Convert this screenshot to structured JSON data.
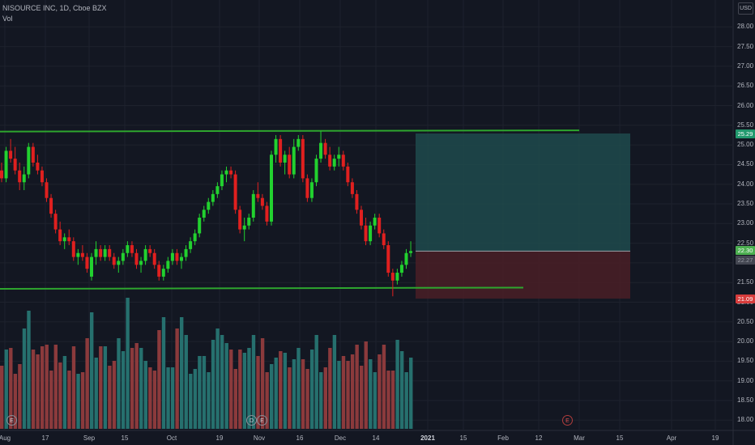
{
  "header": {
    "symbol_line": "NISOURCE INC, 1D, Cboe BZX",
    "volume_label": "Vol"
  },
  "currency_button": "USD",
  "colors": {
    "background": "#131722",
    "up": "#22d12f",
    "down": "#e0201f",
    "volume_up": "#26706e",
    "volume_down": "#8b3a3c",
    "channel": "#2ea62e",
    "target_zone": "#1e4a4c",
    "stop_zone": "#4a1f26",
    "grid": "#1e222d"
  },
  "price_axis": {
    "labels": [
      "28.00",
      "27.50",
      "27.00",
      "26.50",
      "26.00",
      "25.50",
      "25.00",
      "24.50",
      "24.00",
      "23.50",
      "23.00",
      "22.50",
      "22.00",
      "21.50",
      "21.00",
      "20.50",
      "20.00",
      "19.50",
      "19.00",
      "18.50",
      "18.00"
    ]
  },
  "price_tags": {
    "target": "25.29",
    "current": "22.30",
    "hidden": "22.27",
    "stop": "21.09"
  },
  "time_axis": {
    "labels": [
      "Aug",
      "17",
      "Sep",
      "15",
      "Oct",
      "19",
      "Nov",
      "16",
      "Dec",
      "14",
      "2021",
      "15",
      "Feb",
      "12",
      "Mar",
      "15",
      "Apr",
      "19"
    ]
  },
  "events": [
    {
      "type": "earnings",
      "label": "E"
    },
    {
      "type": "dividend",
      "label": "D"
    },
    {
      "type": "earnings",
      "label": "E"
    },
    {
      "type": "earnings-upcoming",
      "label": "E"
    }
  ],
  "chart_data": {
    "type": "candlestick",
    "symbol": "NISOURCE INC",
    "interval": "1D",
    "exchange": "Cboe BZX",
    "currency": "USD",
    "ylim": [
      17.9,
      28.3
    ],
    "x_range": [
      "Aug 2020",
      "Apr 2021"
    ],
    "candles": [
      [
        24.35,
        24.55,
        24.05,
        24.15
      ],
      [
        24.15,
        24.95,
        24.05,
        24.85
      ],
      [
        24.85,
        25.15,
        24.55,
        24.65
      ],
      [
        24.65,
        24.95,
        24.25,
        24.35
      ],
      [
        24.35,
        24.55,
        23.85,
        24.05
      ],
      [
        24.05,
        24.45,
        23.85,
        24.25
      ],
      [
        24.25,
        25.05,
        24.15,
        24.95
      ],
      [
        24.95,
        25.05,
        24.45,
        24.55
      ],
      [
        24.55,
        24.75,
        24.25,
        24.35
      ],
      [
        24.35,
        24.45,
        23.95,
        24.05
      ],
      [
        24.05,
        24.15,
        23.55,
        23.65
      ],
      [
        23.65,
        23.75,
        23.15,
        23.25
      ],
      [
        23.25,
        23.35,
        22.75,
        22.85
      ],
      [
        22.85,
        23.05,
        22.45,
        22.55
      ],
      [
        22.55,
        22.75,
        22.35,
        22.65
      ],
      [
        22.65,
        22.85,
        22.45,
        22.55
      ],
      [
        22.55,
        22.65,
        22.05,
        22.15
      ],
      [
        22.15,
        22.35,
        21.95,
        22.25
      ],
      [
        22.25,
        22.45,
        22.05,
        22.15
      ],
      [
        22.15,
        22.25,
        21.75,
        21.85
      ],
      [
        21.65,
        22.25,
        21.55,
        22.15
      ],
      [
        22.15,
        22.55,
        21.95,
        22.35
      ],
      [
        22.35,
        22.45,
        22.05,
        22.15
      ],
      [
        22.15,
        22.45,
        22.05,
        22.35
      ],
      [
        22.35,
        22.45,
        22.05,
        22.15
      ],
      [
        22.15,
        22.25,
        21.85,
        21.95
      ],
      [
        21.95,
        22.15,
        21.75,
        22.05
      ],
      [
        22.05,
        22.35,
        21.95,
        22.25
      ],
      [
        22.25,
        22.55,
        22.15,
        22.45
      ],
      [
        22.45,
        22.55,
        22.15,
        22.25
      ],
      [
        22.25,
        22.35,
        21.85,
        21.95
      ],
      [
        21.95,
        22.15,
        21.75,
        22.05
      ],
      [
        22.05,
        22.45,
        21.95,
        22.35
      ],
      [
        22.35,
        22.45,
        22.15,
        22.25
      ],
      [
        22.25,
        22.35,
        21.85,
        21.95
      ],
      [
        21.95,
        22.05,
        21.55,
        21.65
      ],
      [
        21.65,
        21.95,
        21.55,
        21.85
      ],
      [
        21.85,
        22.15,
        21.75,
        22.05
      ],
      [
        22.05,
        22.35,
        21.95,
        22.25
      ],
      [
        22.25,
        22.35,
        21.95,
        22.05
      ],
      [
        22.05,
        22.25,
        21.85,
        22.15
      ],
      [
        22.15,
        22.45,
        22.05,
        22.35
      ],
      [
        22.35,
        22.65,
        22.25,
        22.55
      ],
      [
        22.55,
        22.85,
        22.45,
        22.75
      ],
      [
        22.75,
        23.25,
        22.65,
        23.15
      ],
      [
        23.15,
        23.45,
        23.05,
        23.35
      ],
      [
        23.35,
        23.65,
        23.25,
        23.55
      ],
      [
        23.55,
        23.85,
        23.45,
        23.75
      ],
      [
        23.75,
        24.05,
        23.65,
        23.95
      ],
      [
        23.95,
        24.35,
        23.85,
        24.25
      ],
      [
        24.25,
        24.45,
        24.05,
        24.35
      ],
      [
        24.35,
        24.45,
        24.15,
        24.25
      ],
      [
        24.25,
        24.35,
        23.25,
        23.35
      ],
      [
        23.35,
        23.45,
        22.75,
        22.85
      ],
      [
        22.85,
        23.15,
        22.55,
        22.95
      ],
      [
        22.95,
        23.25,
        22.85,
        23.15
      ],
      [
        23.15,
        23.85,
        23.05,
        23.75
      ],
      [
        23.75,
        24.05,
        23.55,
        23.65
      ],
      [
        23.65,
        23.75,
        23.35,
        23.45
      ],
      [
        23.45,
        23.55,
        22.95,
        23.05
      ],
      [
        23.05,
        24.85,
        22.95,
        24.75
      ],
      [
        24.75,
        25.25,
        24.55,
        25.15
      ],
      [
        25.15,
        25.25,
        24.45,
        24.55
      ],
      [
        24.55,
        24.85,
        24.25,
        24.75
      ],
      [
        24.75,
        24.95,
        24.15,
        24.25
      ],
      [
        24.25,
        25.15,
        24.15,
        24.95
      ],
      [
        24.95,
        25.25,
        24.85,
        25.15
      ],
      [
        25.15,
        25.25,
        24.05,
        24.15
      ],
      [
        24.15,
        24.25,
        23.55,
        23.65
      ],
      [
        23.65,
        24.15,
        23.55,
        24.05
      ],
      [
        24.05,
        24.75,
        23.95,
        24.65
      ],
      [
        24.65,
        25.35,
        24.55,
        25.05
      ],
      [
        25.05,
        25.15,
        24.65,
        24.75
      ],
      [
        24.75,
        24.95,
        24.35,
        24.45
      ],
      [
        24.45,
        24.75,
        24.35,
        24.65
      ],
      [
        24.65,
        24.95,
        24.45,
        24.75
      ],
      [
        24.75,
        24.85,
        24.35,
        24.45
      ],
      [
        24.45,
        24.55,
        23.95,
        24.05
      ],
      [
        24.05,
        24.15,
        23.65,
        23.75
      ],
      [
        23.75,
        23.85,
        23.25,
        23.35
      ],
      [
        23.35,
        23.45,
        22.85,
        22.95
      ],
      [
        22.95,
        23.15,
        22.45,
        22.55
      ],
      [
        22.55,
        23.05,
        22.45,
        22.95
      ],
      [
        22.95,
        23.25,
        22.85,
        23.15
      ],
      [
        23.15,
        23.25,
        22.65,
        22.75
      ],
      [
        22.75,
        22.85,
        22.35,
        22.45
      ],
      [
        22.45,
        22.55,
        21.65,
        21.75
      ],
      [
        21.75,
        21.85,
        21.15,
        21.55
      ],
      [
        21.55,
        21.85,
        21.45,
        21.75
      ],
      [
        21.75,
        22.05,
        21.65,
        21.95
      ],
      [
        21.95,
        22.35,
        21.85,
        22.25
      ],
      [
        22.25,
        22.55,
        22.15,
        22.3
      ]
    ],
    "volume_relative": [
      0.39,
      0.49,
      0.5,
      0.34,
      0.4,
      0.62,
      0.73,
      0.49,
      0.46,
      0.51,
      0.52,
      0.36,
      0.52,
      0.41,
      0.45,
      0.36,
      0.51,
      0.34,
      0.35,
      0.56,
      0.72,
      0.44,
      0.51,
      0.51,
      0.39,
      0.42,
      0.56,
      0.48,
      0.81,
      0.5,
      0.53,
      0.5,
      0.42,
      0.38,
      0.36,
      0.61,
      0.69,
      0.38,
      0.38,
      0.62,
      0.69,
      0.58,
      0.34,
      0.37,
      0.45,
      0.45,
      0.35,
      0.55,
      0.62,
      0.58,
      0.53,
      0.49,
      0.37,
      0.49,
      0.47,
      0.5,
      0.58,
      0.45,
      0.56,
      0.35,
      0.4,
      0.44,
      0.48,
      0.47,
      0.38,
      0.43,
      0.5,
      0.43,
      0.37,
      0.49,
      0.58,
      0.35,
      0.38,
      0.5,
      0.58,
      0.42,
      0.45,
      0.42,
      0.46,
      0.52,
      0.39,
      0.54,
      0.43,
      0.35,
      0.46,
      0.52,
      0.36,
      0.36,
      0.55,
      0.48,
      0.35,
      0.44
    ],
    "annotations": {
      "channel_upper": 25.35,
      "channel_lower": 21.35,
      "long_position": {
        "entry": 22.3,
        "target": 25.29,
        "stop": 21.09
      }
    }
  }
}
